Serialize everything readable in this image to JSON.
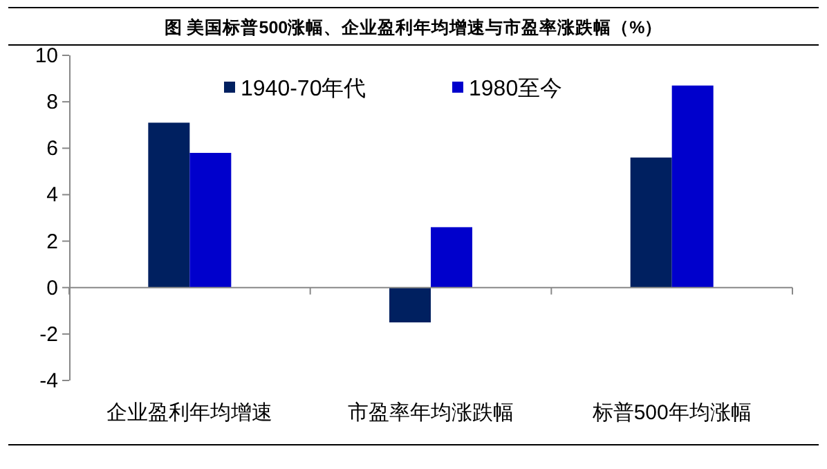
{
  "chart_data": {
    "type": "bar",
    "title": "图  美国标普500涨幅、企业盈利年均增速与市盈率涨跌幅（%）",
    "categories": [
      "企业盈利年均增速",
      "市盈率年均涨跌幅",
      "标普500年均涨幅"
    ],
    "series": [
      {
        "name": "1940-70年代",
        "color": "#002060",
        "values": [
          7.1,
          -1.5,
          5.6
        ]
      },
      {
        "name": "1980至今",
        "color": "#0000cc",
        "values": [
          5.8,
          2.6,
          8.7
        ]
      }
    ],
    "ylim": [
      -4,
      10
    ],
    "yticks": [
      -4,
      -2,
      0,
      2,
      4,
      6,
      8,
      10
    ],
    "legend": "top"
  }
}
